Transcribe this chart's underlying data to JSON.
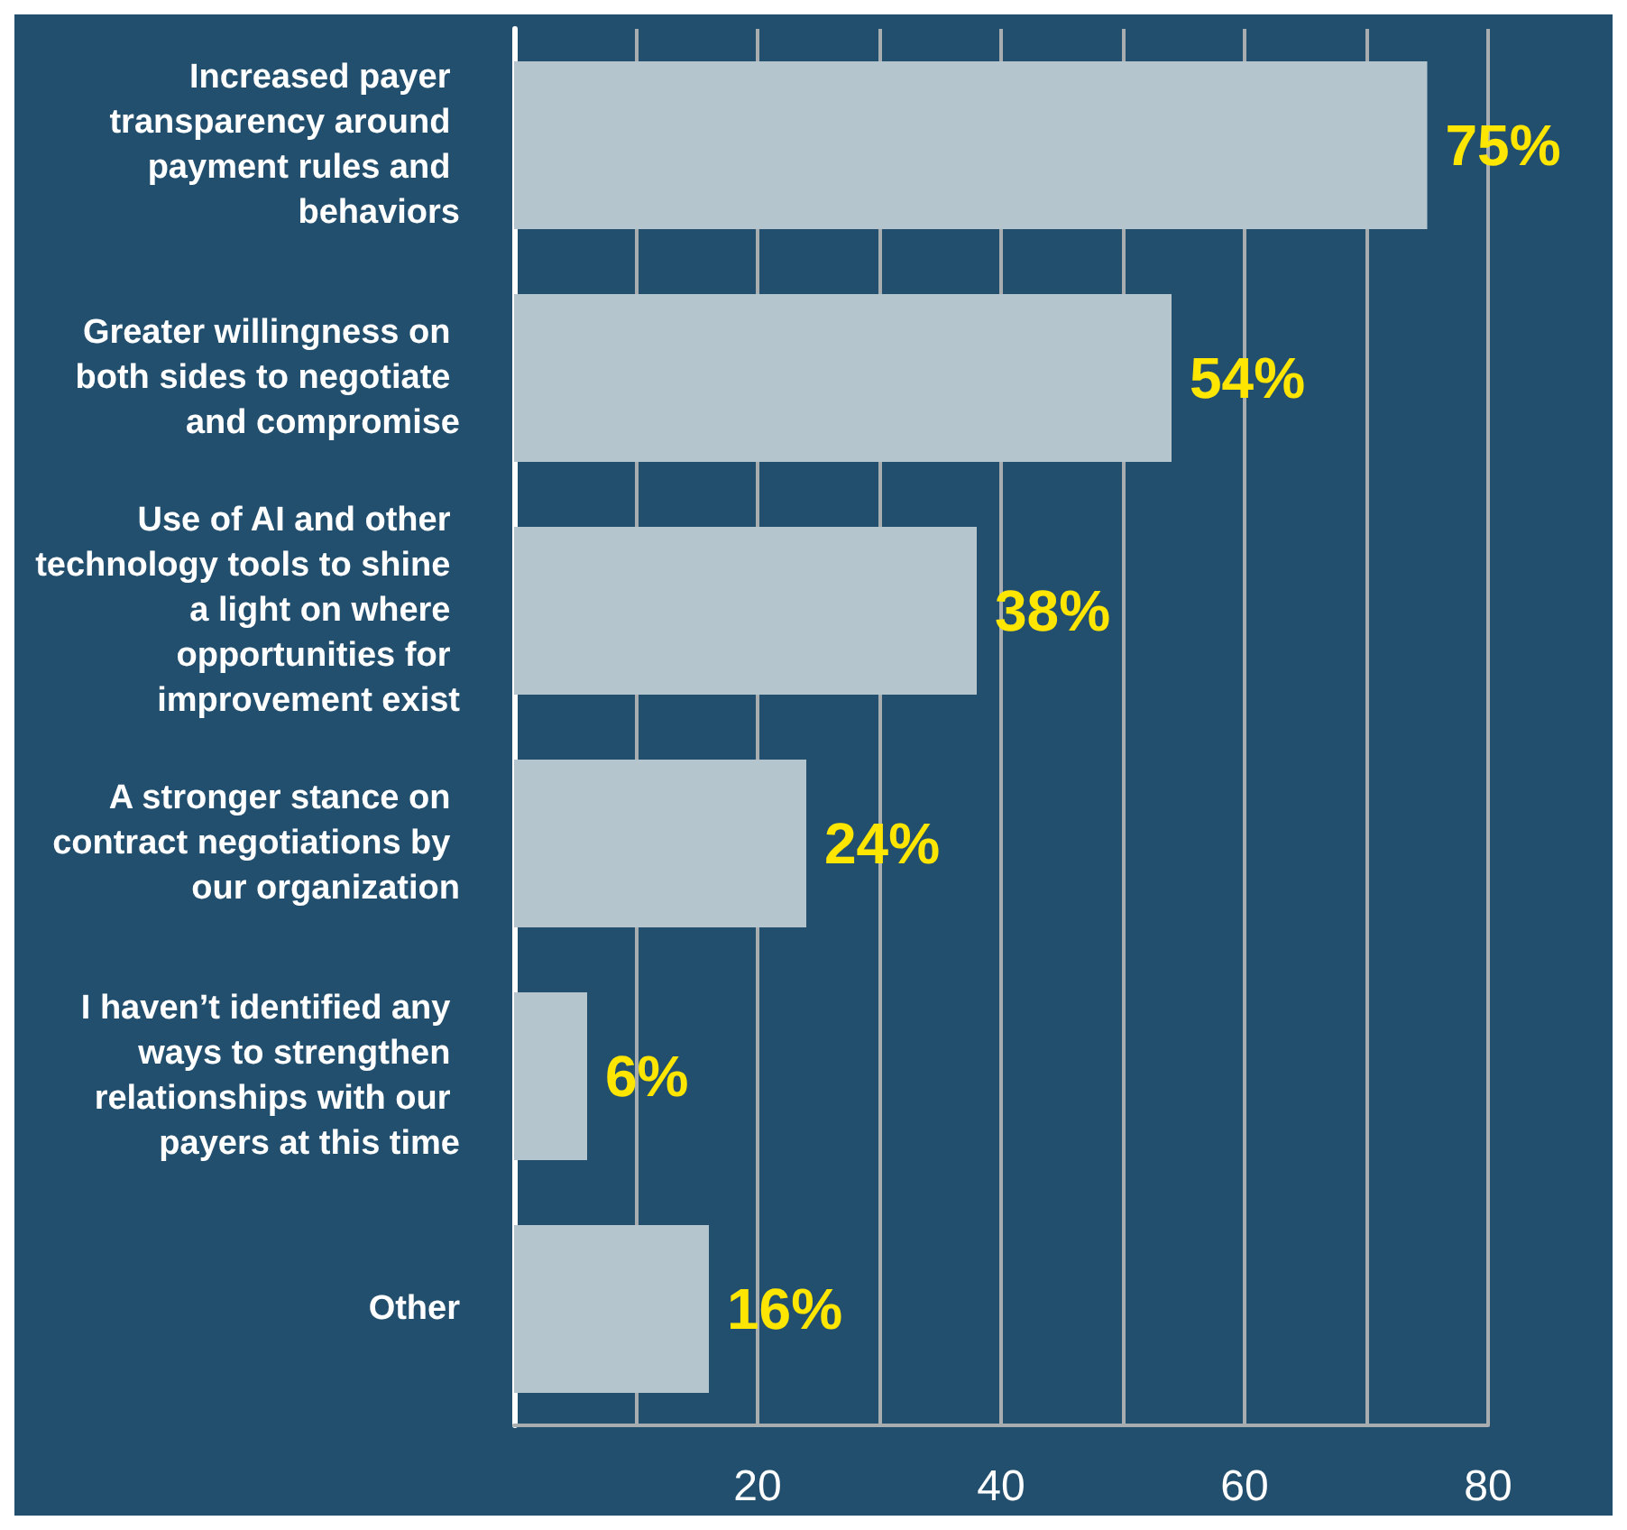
{
  "chart_data": {
    "type": "bar",
    "orientation": "horizontal",
    "categories": [
      "Increased payer transparency around payment rules and behaviors",
      "Greater willingness on both sides to negotiate and compromise",
      "Use of AI and other technology tools to shine a light on where opportunities for improvement exist",
      "A stronger stance on contract negotiations by our organization",
      "I haven’t identified any ways to strengthen relationships with our payers at this time",
      "Other"
    ],
    "values": [
      75,
      54,
      38,
      24,
      6,
      16
    ],
    "value_labels": [
      "75%",
      "54%",
      "38%",
      "24%",
      "6%",
      "16%"
    ],
    "color": "#b5c5cd",
    "xlim": [
      0,
      80
    ],
    "xticks": [
      {
        "value": 0,
        "label": null
      },
      {
        "value": 10,
        "label": null
      },
      20,
      {
        "value": 30,
        "label": null
      },
      40,
      {
        "value": 50,
        "label": null
      },
      60,
      {
        "value": 70,
        "label": null
      },
      80
    ],
    "grid": "x"
  }
}
